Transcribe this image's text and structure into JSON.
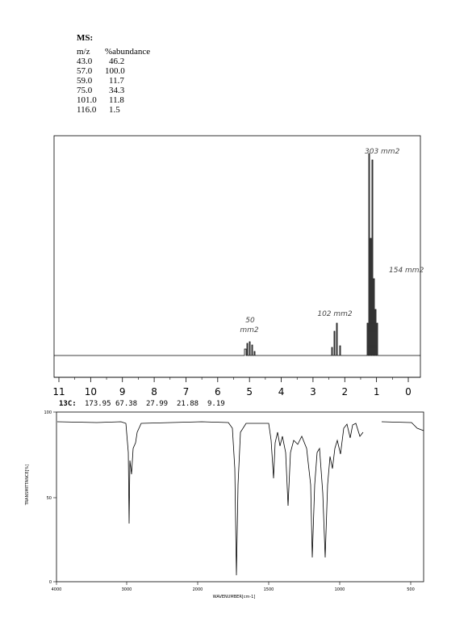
{
  "ms": {
    "heading": "MS:",
    "columns": [
      "m/z",
      "%abundance"
    ],
    "rows": [
      [
        "43.0",
        "46.2"
      ],
      [
        "57.0",
        "100.0"
      ],
      [
        "59.0",
        "11.7"
      ],
      [
        "75.0",
        "34.3"
      ],
      [
        "101.0",
        "11.8"
      ],
      [
        "116.0",
        "1.5"
      ]
    ]
  },
  "nmr": {
    "annotations": [
      "303 mm2",
      "154 mm2",
      "102 mm2",
      "50",
      "mm2"
    ],
    "xticks": [
      "11",
      "10",
      "9",
      "8",
      "7",
      "6",
      "5",
      "4",
      "3",
      "2",
      "1",
      "0"
    ]
  },
  "c13": {
    "label": "13C:",
    "shifts": [
      "173.95",
      "67.38",
      "27.99",
      "21.88",
      "9.19"
    ]
  },
  "ir": {
    "yticks": [
      "100",
      "50",
      "0"
    ],
    "xticks": [
      "4000",
      "3000",
      "2000",
      "1500",
      "1000",
      "500"
    ],
    "xlabel": "WAVENUMBER[cm-1]",
    "ylabel": "TRANSMITTANCE[%]"
  }
}
